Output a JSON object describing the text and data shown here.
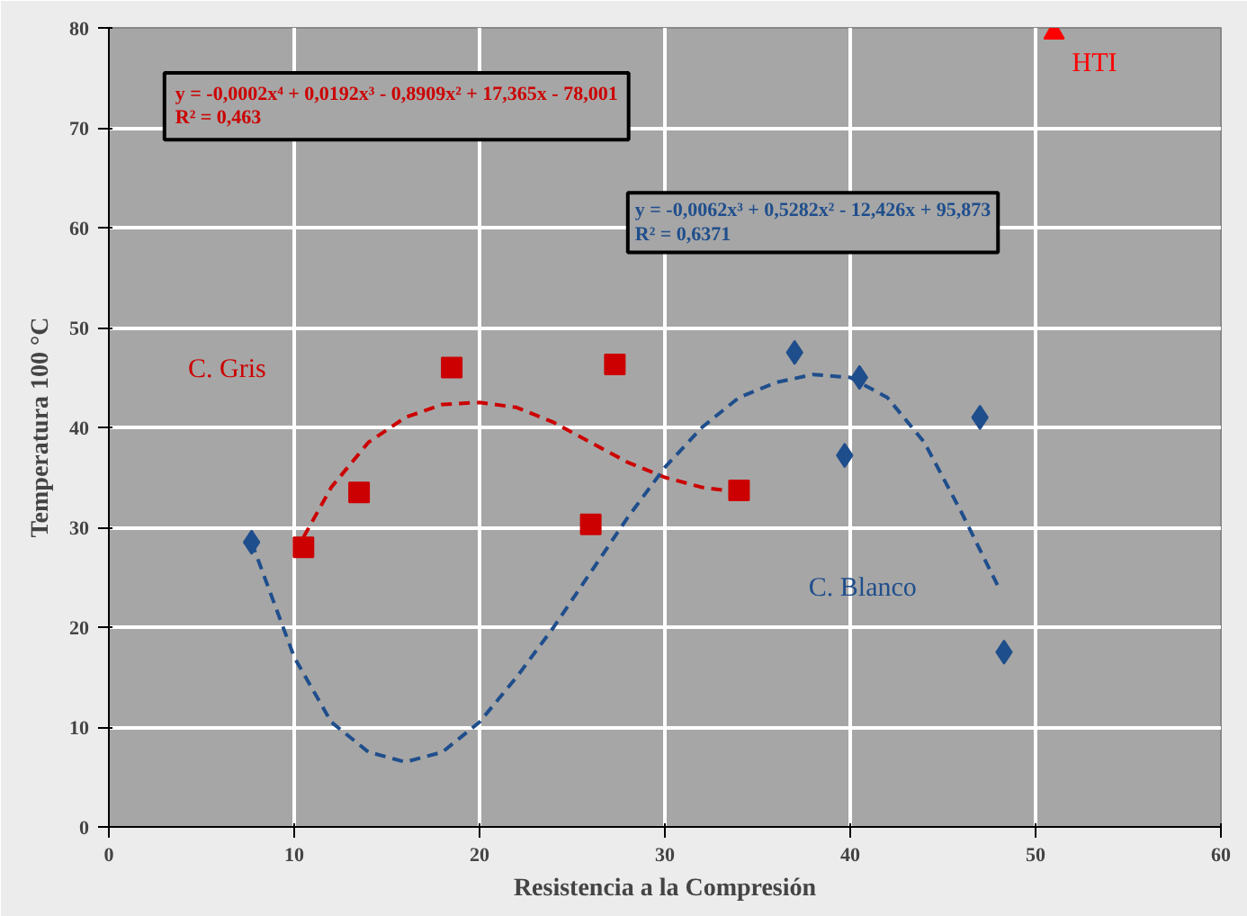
{
  "chart_data": {
    "type": "scatter",
    "xlabel": "Resistencia a la Compresión",
    "ylabel": "Temperatura 100 °C",
    "xlim": [
      0,
      60
    ],
    "ylim": [
      0,
      80
    ],
    "xticks": [
      0,
      10,
      20,
      30,
      40,
      50,
      60
    ],
    "yticks": [
      0,
      10,
      20,
      30,
      40,
      50,
      60,
      70,
      80
    ],
    "grid": true,
    "legend": false,
    "annotations": [
      "y = -0,0002x⁴ + 0,0192x³ - 0,8909x² + 17,365x - 78,001\nR² = 0,463",
      "y = -0,0062x³ + 0,5282x² - 12,426x + 95,873\nR² = 0,6371"
    ],
    "series": [
      {
        "name": "C. Gris",
        "marker": "square",
        "color": "#cc0000",
        "x": [
          10.5,
          13.5,
          18.5,
          26,
          27.3,
          34
        ],
        "values": [
          28,
          33.5,
          46,
          30.3,
          46.3,
          33.7
        ]
      },
      {
        "name": "C. Blanco",
        "marker": "diamond",
        "color": "#1f4e8c",
        "x": [
          7.7,
          37,
          39.7,
          40.5,
          47,
          48.3
        ],
        "values": [
          28.5,
          47.5,
          37.2,
          45,
          41,
          17.5
        ]
      },
      {
        "name": "HTI",
        "marker": "triangle",
        "color": "#ff0000",
        "x": [
          51
        ],
        "values": [
          79.5
        ]
      },
      {
        "type": "line",
        "line_style": "dashed",
        "color": "#cc0000",
        "x": [
          10.5,
          12,
          14,
          16,
          18,
          20,
          22,
          24,
          26,
          28,
          30,
          32,
          34
        ],
        "values": [
          29,
          34,
          38.5,
          41,
          42.3,
          42.5,
          42,
          40.5,
          38.5,
          36.5,
          35,
          34,
          33.5
        ]
      },
      {
        "type": "line",
        "line_style": "dashed",
        "color": "#1f4e8c",
        "x": [
          7.7,
          9,
          10,
          12,
          14,
          16,
          18,
          20,
          22,
          24,
          26,
          28,
          30,
          32,
          34,
          36,
          38,
          40,
          42,
          44,
          46,
          48
        ],
        "values": [
          28.5,
          22,
          17,
          10.5,
          7.5,
          6.5,
          7.5,
          10.5,
          15,
          20,
          25.5,
          31,
          36,
          40,
          43,
          44.5,
          45.3,
          45,
          43,
          38.5,
          31.5,
          24
        ]
      }
    ]
  }
}
